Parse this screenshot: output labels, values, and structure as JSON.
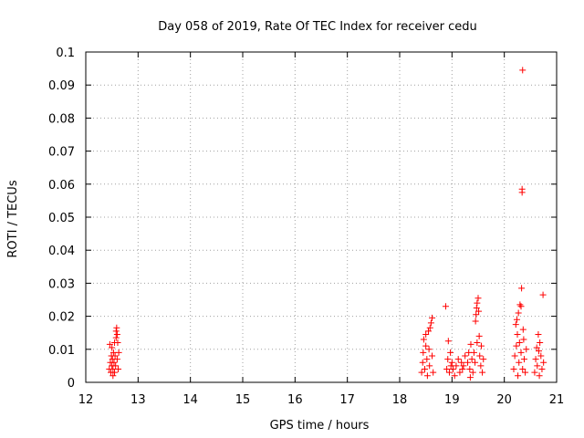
{
  "chart_data": {
    "type": "scatter",
    "title": "Day 058 of 2019, Rate Of TEC Index for receiver cedu",
    "xlabel": "GPS time / hours",
    "ylabel": "ROTI / TECUs",
    "xlim": [
      12,
      21
    ],
    "ylim": [
      0,
      0.1
    ],
    "x_ticks": [
      12,
      13,
      14,
      15,
      16,
      17,
      18,
      19,
      20,
      21
    ],
    "y_ticks": [
      0,
      0.01,
      0.02,
      0.03,
      0.04,
      0.05,
      0.06,
      0.07,
      0.08,
      0.09,
      0.1
    ],
    "x_tick_labels": [
      "12",
      "13",
      "14",
      "15",
      "16",
      "17",
      "18",
      "19",
      "20",
      "21"
    ],
    "y_tick_labels": [
      "0",
      "0.01",
      "0.02",
      "0.03",
      "0.04",
      "0.05",
      "0.06",
      "0.07",
      "0.08",
      "0.09",
      "0.1"
    ],
    "grid": true,
    "marker": "+",
    "color": "#ff0000",
    "series": [
      {
        "points": [
          [
            12.45,
            0.004
          ],
          [
            12.47,
            0.006
          ],
          [
            12.48,
            0.003
          ],
          [
            12.49,
            0.008
          ],
          [
            12.5,
            0.005
          ],
          [
            12.5,
            0.0105
          ],
          [
            12.51,
            0.007
          ],
          [
            12.52,
            0.004
          ],
          [
            12.53,
            0.009
          ],
          [
            12.54,
            0.006
          ],
          [
            12.55,
            0.012
          ],
          [
            12.55,
            0.003
          ],
          [
            12.56,
            0.008
          ],
          [
            12.57,
            0.005
          ],
          [
            12.58,
            0.0135
          ],
          [
            12.58,
            0.0155
          ],
          [
            12.59,
            0.0165
          ],
          [
            12.6,
            0.0145
          ],
          [
            12.6,
            0.007
          ],
          [
            12.61,
            0.012
          ],
          [
            12.62,
            0.004
          ],
          [
            12.63,
            0.009
          ],
          [
            12.52,
            0.002
          ],
          [
            12.46,
            0.0115
          ],
          [
            18.42,
            0.003
          ],
          [
            18.44,
            0.006
          ],
          [
            18.45,
            0.009
          ],
          [
            18.46,
            0.013
          ],
          [
            18.48,
            0.004
          ],
          [
            18.5,
            0.0145
          ],
          [
            18.52,
            0.007
          ],
          [
            18.53,
            0.002
          ],
          [
            18.55,
            0.0155
          ],
          [
            18.57,
            0.005
          ],
          [
            18.58,
            0.0165
          ],
          [
            18.6,
            0.018
          ],
          [
            18.62,
            0.0195
          ],
          [
            18.62,
            0.008
          ],
          [
            18.64,
            0.003
          ],
          [
            18.5,
            0.011
          ],
          [
            18.56,
            0.01
          ],
          [
            18.88,
            0.023
          ],
          [
            18.9,
            0.004
          ],
          [
            18.92,
            0.007
          ],
          [
            18.93,
            0.0125
          ],
          [
            18.95,
            0.003
          ],
          [
            18.97,
            0.009
          ],
          [
            18.98,
            0.005
          ],
          [
            19.0,
            0.006
          ],
          [
            19.02,
            0.004
          ],
          [
            19.05,
            0.002
          ],
          [
            19.08,
            0.005
          ],
          [
            19.12,
            0.007
          ],
          [
            19.15,
            0.003
          ],
          [
            19.18,
            0.006
          ],
          [
            19.2,
            0.004
          ],
          [
            19.22,
            0.005
          ],
          [
            19.25,
            0.008
          ],
          [
            19.3,
            0.006
          ],
          [
            19.32,
            0.009
          ],
          [
            19.34,
            0.004
          ],
          [
            19.36,
            0.0115
          ],
          [
            19.38,
            0.007
          ],
          [
            19.4,
            0.003
          ],
          [
            19.42,
            0.009
          ],
          [
            19.44,
            0.006
          ],
          [
            19.45,
            0.0185
          ],
          [
            19.46,
            0.0205
          ],
          [
            19.47,
            0.0225
          ],
          [
            19.48,
            0.024
          ],
          [
            19.5,
            0.0255
          ],
          [
            19.51,
            0.0215
          ],
          [
            19.52,
            0.014
          ],
          [
            19.53,
            0.008
          ],
          [
            19.55,
            0.005
          ],
          [
            19.56,
            0.011
          ],
          [
            19.58,
            0.003
          ],
          [
            19.6,
            0.007
          ],
          [
            19.35,
            0.0015
          ],
          [
            19.48,
            0.012
          ],
          [
            20.18,
            0.004
          ],
          [
            20.2,
            0.008
          ],
          [
            20.22,
            0.0175
          ],
          [
            20.23,
            0.011
          ],
          [
            20.24,
            0.019
          ],
          [
            20.26,
            0.002
          ],
          [
            20.27,
            0.021
          ],
          [
            20.28,
            0.006
          ],
          [
            20.3,
            0.0235
          ],
          [
            20.32,
            0.023
          ],
          [
            20.32,
            0.009
          ],
          [
            20.33,
            0.0285
          ],
          [
            20.34,
            0.0575
          ],
          [
            20.34,
            0.0585
          ],
          [
            20.35,
            0.0945
          ],
          [
            20.35,
            0.004
          ],
          [
            20.36,
            0.016
          ],
          [
            20.37,
            0.013
          ],
          [
            20.38,
            0.007
          ],
          [
            20.4,
            0.003
          ],
          [
            20.42,
            0.01
          ],
          [
            20.25,
            0.0145
          ],
          [
            20.29,
            0.012
          ],
          [
            20.58,
            0.003
          ],
          [
            20.6,
            0.007
          ],
          [
            20.62,
            0.0105
          ],
          [
            20.63,
            0.005
          ],
          [
            20.65,
            0.0145
          ],
          [
            20.67,
            0.002
          ],
          [
            20.68,
            0.012
          ],
          [
            20.7,
            0.008
          ],
          [
            20.72,
            0.004
          ],
          [
            20.74,
            0.0265
          ],
          [
            20.75,
            0.006
          ],
          [
            20.66,
            0.0095
          ]
        ]
      }
    ]
  }
}
